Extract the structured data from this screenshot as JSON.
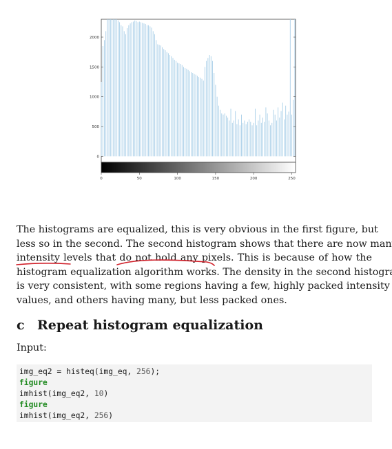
{
  "chart_data": {
    "type": "bar",
    "xlim": [
      0,
      255
    ],
    "ylim": [
      -100,
      2300
    ],
    "x_ticks": [
      "0",
      "50",
      "100",
      "150",
      "200",
      "250"
    ],
    "y_ticks": [
      "0",
      "500",
      "1000",
      "1500",
      "2000"
    ],
    "bar_color": "#a9cfe8",
    "colorbar": "grayscale 0-255",
    "bars": [
      [
        0,
        1250
      ],
      [
        2,
        1850
      ],
      [
        4,
        1950
      ],
      [
        6,
        2100
      ],
      [
        8,
        2350
      ],
      [
        10,
        2300
      ],
      [
        12,
        2350
      ],
      [
        14,
        2320
      ],
      [
        16,
        2340
      ],
      [
        18,
        2300
      ],
      [
        20,
        2330
      ],
      [
        22,
        2280
      ],
      [
        24,
        2250
      ],
      [
        26,
        2200
      ],
      [
        28,
        2180
      ],
      [
        30,
        2100
      ],
      [
        32,
        2050
      ],
      [
        34,
        2150
      ],
      [
        36,
        2200
      ],
      [
        38,
        2230
      ],
      [
        40,
        2250
      ],
      [
        42,
        2260
      ],
      [
        44,
        2280
      ],
      [
        46,
        2270
      ],
      [
        48,
        2250
      ],
      [
        50,
        2260
      ],
      [
        52,
        2250
      ],
      [
        54,
        2240
      ],
      [
        56,
        2230
      ],
      [
        58,
        2220
      ],
      [
        60,
        2200
      ],
      [
        62,
        2200
      ],
      [
        64,
        2180
      ],
      [
        66,
        2160
      ],
      [
        68,
        2100
      ],
      [
        70,
        2050
      ],
      [
        72,
        1950
      ],
      [
        74,
        1880
      ],
      [
        76,
        1870
      ],
      [
        78,
        1860
      ],
      [
        80,
        1830
      ],
      [
        82,
        1800
      ],
      [
        84,
        1780
      ],
      [
        86,
        1750
      ],
      [
        88,
        1730
      ],
      [
        90,
        1700
      ],
      [
        92,
        1680
      ],
      [
        94,
        1650
      ],
      [
        96,
        1620
      ],
      [
        98,
        1600
      ],
      [
        100,
        1570
      ],
      [
        102,
        1560
      ],
      [
        104,
        1550
      ],
      [
        106,
        1530
      ],
      [
        108,
        1500
      ],
      [
        110,
        1480
      ],
      [
        112,
        1470
      ],
      [
        114,
        1450
      ],
      [
        116,
        1430
      ],
      [
        118,
        1410
      ],
      [
        120,
        1400
      ],
      [
        122,
        1380
      ],
      [
        124,
        1370
      ],
      [
        126,
        1350
      ],
      [
        128,
        1330
      ],
      [
        130,
        1320
      ],
      [
        132,
        1300
      ],
      [
        134,
        1270
      ],
      [
        136,
        1500
      ],
      [
        138,
        1600
      ],
      [
        140,
        1650
      ],
      [
        142,
        1700
      ],
      [
        144,
        1680
      ],
      [
        146,
        1600
      ],
      [
        148,
        1400
      ],
      [
        150,
        1200
      ],
      [
        152,
        1000
      ],
      [
        154,
        850
      ],
      [
        156,
        780
      ],
      [
        158,
        720
      ],
      [
        160,
        700
      ],
      [
        162,
        720
      ],
      [
        164,
        680
      ],
      [
        166,
        650
      ],
      [
        168,
        600
      ],
      [
        170,
        800
      ],
      [
        172,
        560
      ],
      [
        174,
        600
      ],
      [
        176,
        760
      ],
      [
        178,
        540
      ],
      [
        180,
        620
      ],
      [
        182,
        520
      ],
      [
        184,
        700
      ],
      [
        186,
        560
      ],
      [
        188,
        600
      ],
      [
        190,
        540
      ],
      [
        192,
        580
      ],
      [
        194,
        620
      ],
      [
        196,
        580
      ],
      [
        198,
        520
      ],
      [
        200,
        560
      ],
      [
        202,
        800
      ],
      [
        204,
        520
      ],
      [
        206,
        600
      ],
      [
        208,
        700
      ],
      [
        210,
        560
      ],
      [
        212,
        650
      ],
      [
        214,
        580
      ],
      [
        216,
        820
      ],
      [
        218,
        720
      ],
      [
        220,
        600
      ],
      [
        222,
        520
      ],
      [
        224,
        560
      ],
      [
        226,
        780
      ],
      [
        228,
        700
      ],
      [
        230,
        600
      ],
      [
        232,
        820
      ],
      [
        234,
        650
      ],
      [
        236,
        760
      ],
      [
        238,
        900
      ],
      [
        240,
        620
      ],
      [
        242,
        850
      ],
      [
        244,
        700
      ],
      [
        246,
        750
      ],
      [
        248,
        2350
      ],
      [
        250,
        700
      ],
      [
        252,
        950
      ],
      [
        254,
        2350
      ]
    ]
  },
  "paragraph": {
    "lines": [
      "The histograms are equalized, this is very obvious in the first figure, but",
      "less so in the second. The second histogram shows that there are now many",
      "intensity levels that do not hold any pixels. This is because of how the",
      "histogram equalization algorithm works. The density in the second histogram",
      "is very consistent, with some regions having a few, highly packed intensity",
      "values, and others having many, but less packed ones."
    ]
  },
  "section": {
    "number": "c",
    "title": "Repeat histogram equalization"
  },
  "input_label": "Input:",
  "code": {
    "line1_a": "img_eq2 = histeq(img_eq, ",
    "line1_num": "256",
    "line1_b": ");",
    "line2": "figure",
    "line3_a": "imhist(img_eq2, ",
    "line3_num": "10",
    "line3_b": ")",
    "line4": "figure",
    "line5_a": "imhist(img_eq2, ",
    "line5_num": "256",
    "line5_b": ")"
  },
  "annotation_color": "#d0202a"
}
